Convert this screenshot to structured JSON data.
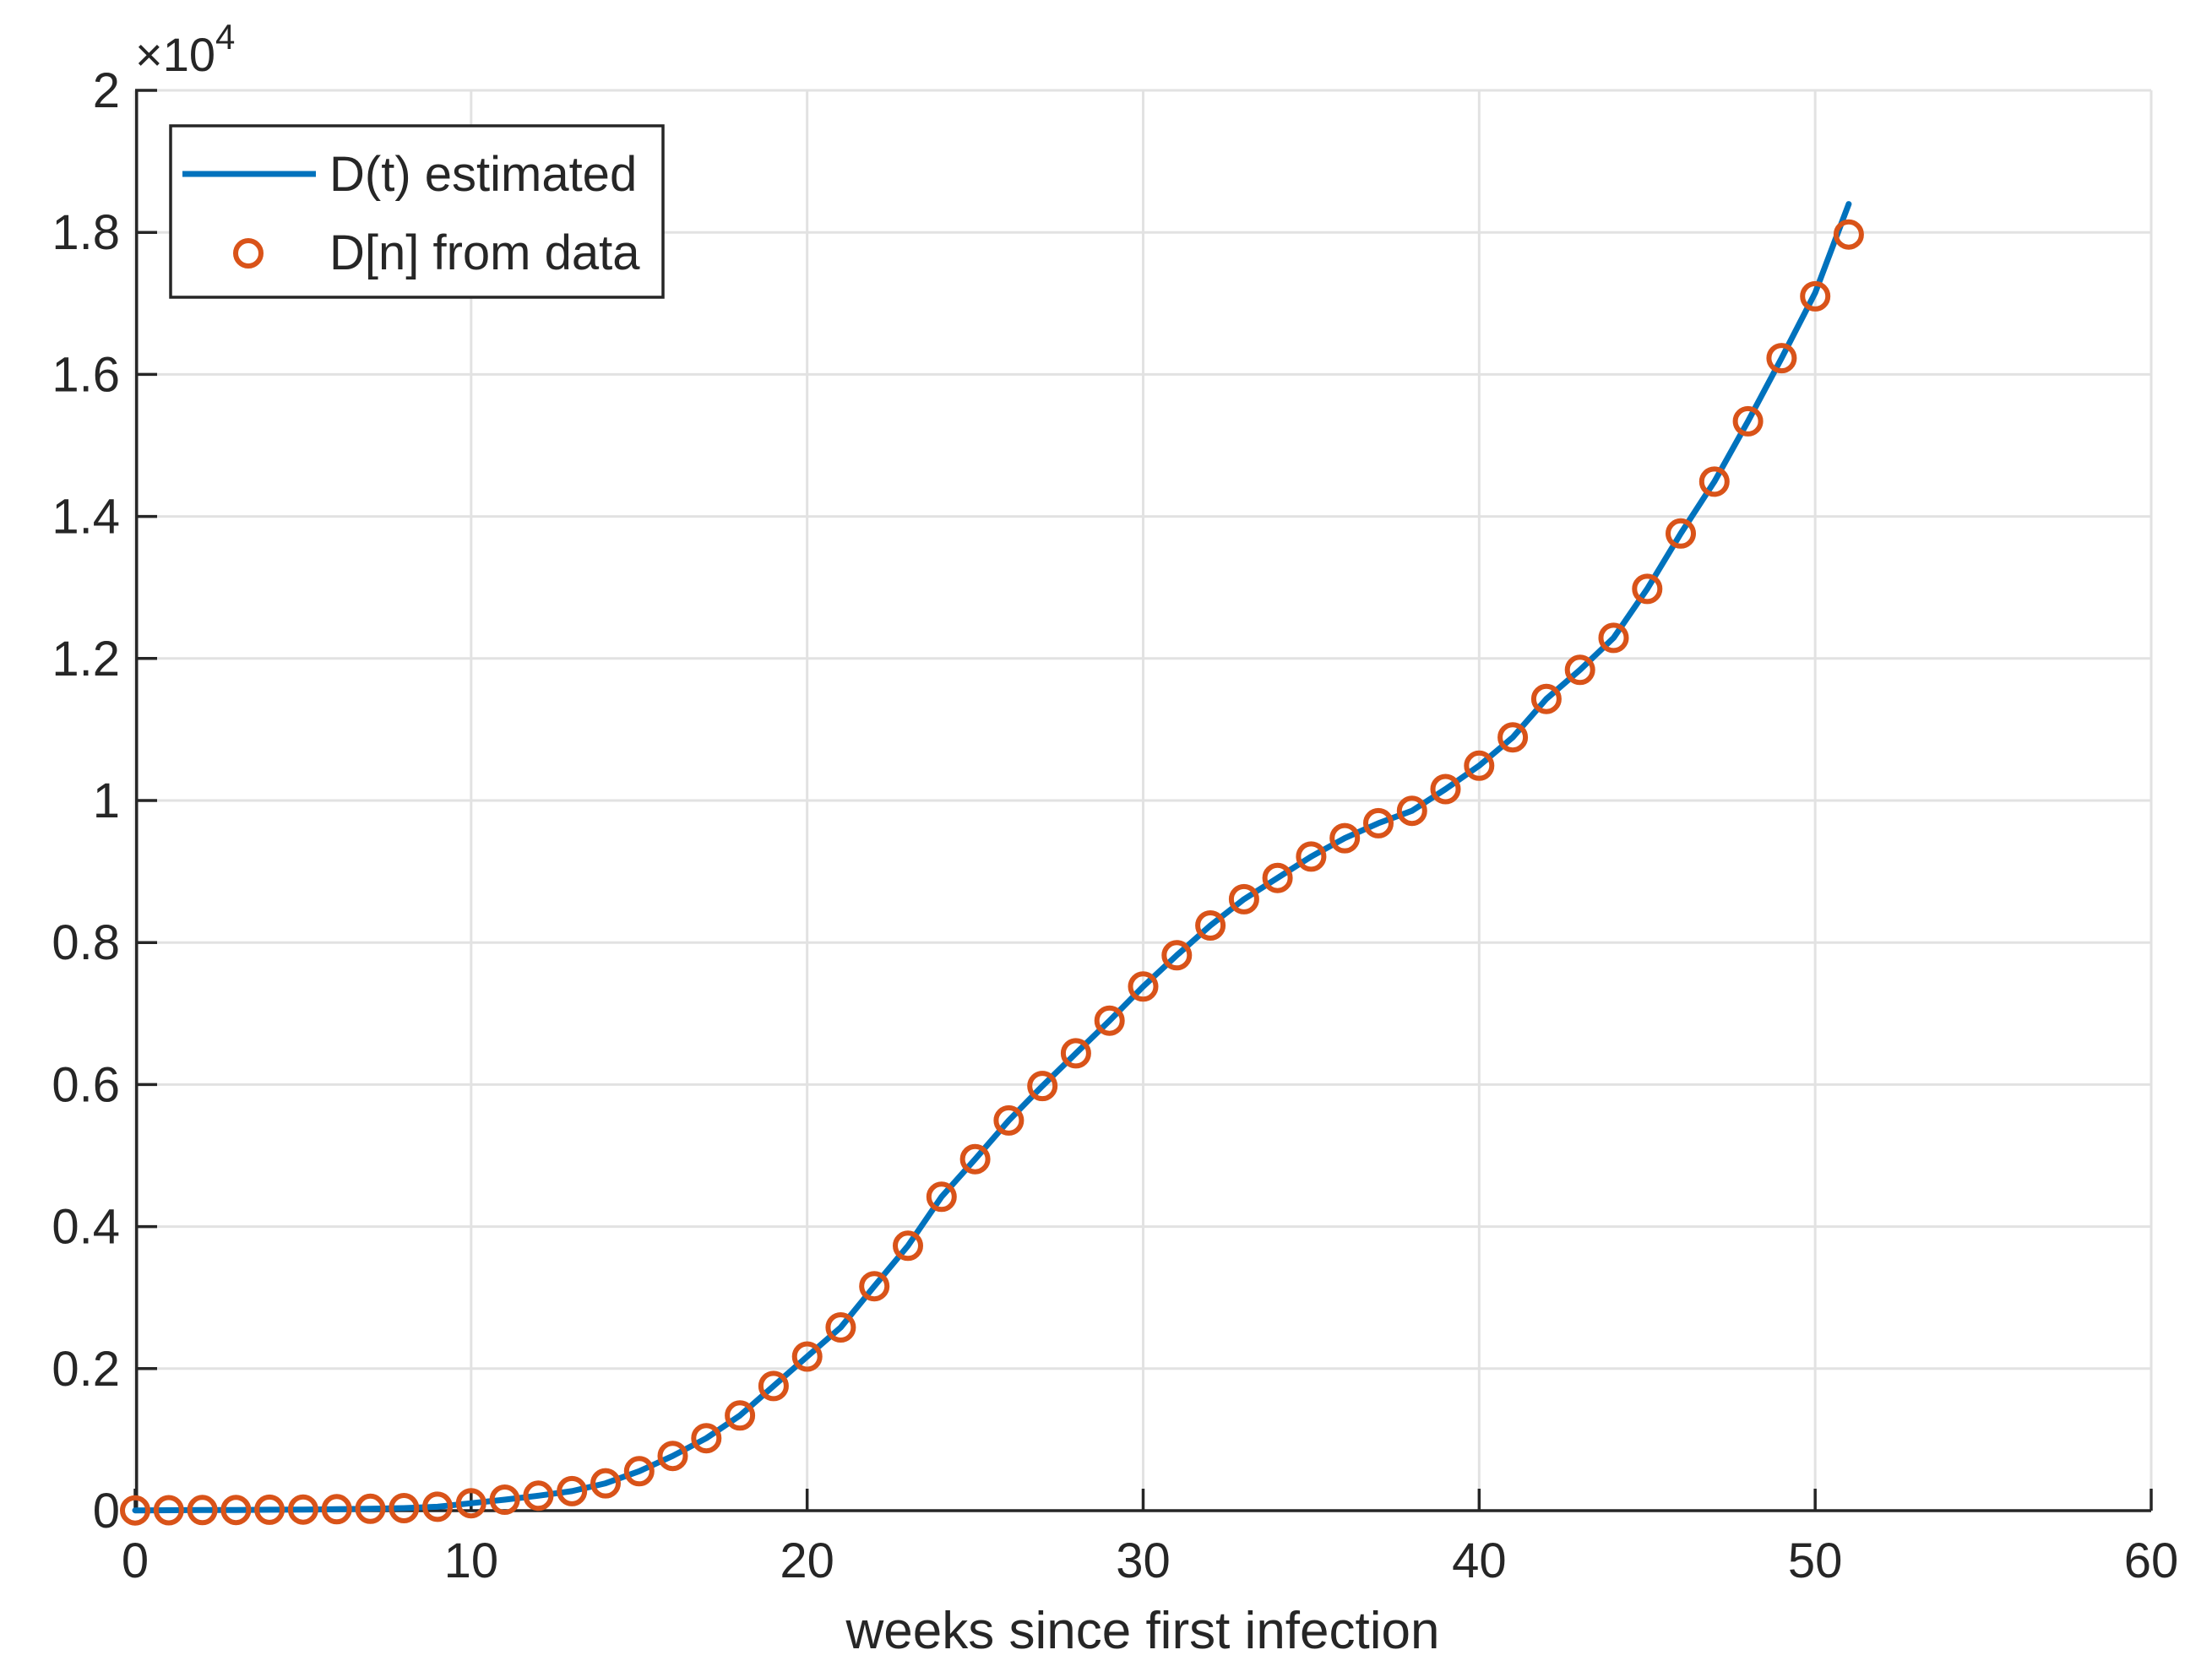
{
  "chart_data": {
    "type": "line+scatter",
    "title": "",
    "xlabel": "weeks since first infection",
    "ylabel": "",
    "y_multiplier": {
      "base": "×10",
      "exp": "4"
    },
    "xlim": [
      0,
      60
    ],
    "ylim": [
      0,
      20000
    ],
    "xticks": [
      0,
      10,
      20,
      30,
      40,
      50,
      60
    ],
    "xtick_labels": [
      "0",
      "10",
      "20",
      "30",
      "40",
      "50",
      "60"
    ],
    "yticks": [
      0,
      2000,
      4000,
      6000,
      8000,
      10000,
      12000,
      14000,
      16000,
      18000,
      20000
    ],
    "ytick_labels": [
      "0",
      "0.2",
      "0.4",
      "0.6",
      "0.8",
      "1",
      "1.2",
      "1.4",
      "1.6",
      "1.8",
      "2"
    ],
    "grid": true,
    "legend": {
      "position": "northwest",
      "entries": [
        {
          "label": "D(t) estimated",
          "type": "line",
          "color": "#0072BD"
        },
        {
          "label": "D[n] from data",
          "type": "marker",
          "color": "#D95319"
        }
      ]
    },
    "series": [
      {
        "name": "D(t) estimated",
        "type": "line",
        "color": "#0072BD",
        "x": [
          0,
          1,
          2,
          3,
          4,
          5,
          6,
          7,
          8,
          9,
          10,
          11,
          12,
          13,
          14,
          15,
          16,
          17,
          18,
          19,
          20,
          21,
          22,
          23,
          24,
          25,
          26,
          27,
          28,
          29,
          30,
          31,
          32,
          33,
          34,
          35,
          36,
          37,
          38,
          39,
          40,
          41,
          42,
          43,
          44,
          45,
          46,
          47,
          48,
          49,
          50,
          51
        ],
        "y": [
          4,
          6,
          8,
          10,
          13,
          16,
          20,
          26,
          36,
          55,
          105,
          155,
          210,
          275,
          385,
          555,
          770,
          1020,
          1340,
          1755,
          2170,
          2580,
          3160,
          3730,
          4420,
          4950,
          5495,
          5980,
          6440,
          6900,
          7380,
          7820,
          8240,
          8610,
          8910,
          9210,
          9470,
          9680,
          9855,
          10160,
          10490,
          10890,
          11430,
          11840,
          12290,
          12980,
          13760,
          14490,
          15340,
          16230,
          17150,
          18400
        ]
      },
      {
        "name": "D[n] from data",
        "type": "scatter",
        "color": "#D95319",
        "x": [
          0,
          1,
          2,
          3,
          4,
          5,
          6,
          7,
          8,
          9,
          10,
          11,
          12,
          13,
          14,
          15,
          16,
          17,
          18,
          19,
          20,
          21,
          22,
          23,
          24,
          25,
          26,
          27,
          28,
          29,
          30,
          31,
          32,
          33,
          34,
          35,
          36,
          37,
          38,
          39,
          40,
          41,
          42,
          43,
          44,
          45,
          46,
          47,
          48,
          49,
          50,
          51
        ],
        "y": [
          4,
          6,
          8,
          10,
          13,
          16,
          20,
          26,
          36,
          55,
          105,
          155,
          210,
          275,
          385,
          555,
          770,
          1020,
          1340,
          1755,
          2170,
          2580,
          3160,
          3730,
          4420,
          4950,
          5495,
          5980,
          6440,
          6900,
          7380,
          7820,
          8240,
          8610,
          8910,
          9210,
          9470,
          9680,
          9855,
          10160,
          10490,
          10890,
          11430,
          11840,
          12290,
          12980,
          13760,
          14490,
          15340,
          16230,
          17100,
          17970
        ]
      }
    ],
    "colors": {
      "line": "#0072BD",
      "marker": "#D95319",
      "grid": "#E2E2E2",
      "axis": "#262626",
      "text": "#262626",
      "background": "#FFFFFF"
    }
  }
}
